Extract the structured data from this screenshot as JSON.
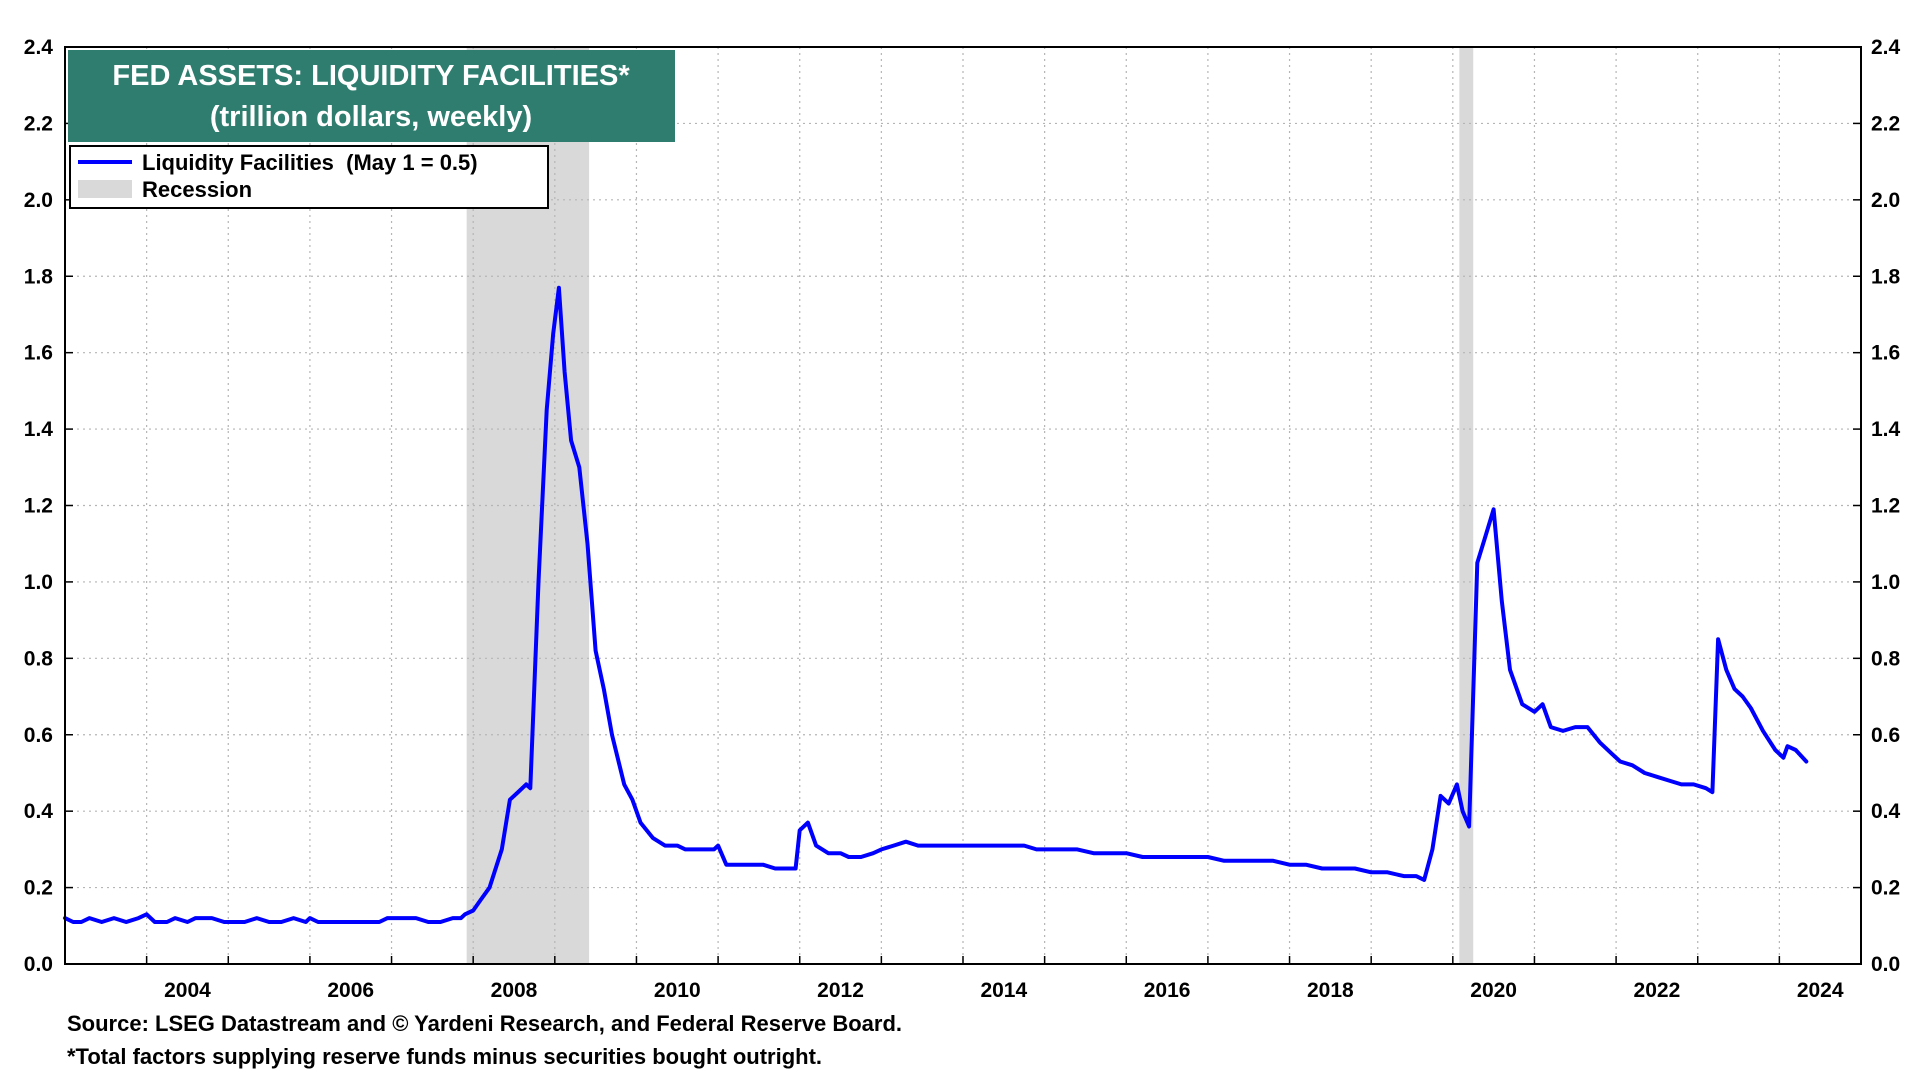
{
  "chart_data": {
    "type": "line",
    "title": "FED ASSETS: LIQUIDITY FACILITIES*",
    "subtitle": "(trillion dollars, weekly)",
    "legend": {
      "placement": "top-left",
      "entries": [
        {
          "label": "Liquidity Facilities  (May 1 = 0.5)",
          "kind": "line",
          "color": "#0000ff"
        },
        {
          "label": "Recession",
          "kind": "band",
          "color": "#d9d9d9"
        }
      ]
    },
    "x_ticks": [
      "2004",
      "2006",
      "2008",
      "2010",
      "2012",
      "2014",
      "2016",
      "2018",
      "2020",
      "2022",
      "2024"
    ],
    "y_ticks": [
      "0.0",
      "0.2",
      "0.4",
      "0.6",
      "0.8",
      "1.0",
      "1.2",
      "1.4",
      "1.6",
      "1.8",
      "2.0",
      "2.2",
      "2.4"
    ],
    "xlim": [
      2003.0,
      2025.0
    ],
    "ylim": [
      0,
      2.4
    ],
    "grid": true,
    "dual_y_axis": true,
    "recessions": [
      {
        "start": 2007.92,
        "end": 2009.42
      },
      {
        "start": 2020.08,
        "end": 2020.25
      }
    ],
    "series": [
      {
        "name": "Liquidity Facilities  (May 1 = 0.5)",
        "color": "#0000ff",
        "x": [
          2003.0,
          2003.1,
          2003.2,
          2003.3,
          2003.45,
          2003.6,
          2003.75,
          2003.9,
          2004.0,
          2004.1,
          2004.25,
          2004.35,
          2004.5,
          2004.6,
          2004.7,
          2004.8,
          2004.95,
          2005.05,
          2005.2,
          2005.35,
          2005.5,
          2005.65,
          2005.8,
          2005.95,
          2006.0,
          2006.1,
          2006.25,
          2006.4,
          2006.55,
          2006.7,
          2006.85,
          2006.95,
          2007.1,
          2007.2,
          2007.3,
          2007.45,
          2007.6,
          2007.75,
          2007.85,
          2007.9,
          2008.0,
          2008.1,
          2008.2,
          2008.35,
          2008.45,
          2008.55,
          2008.65,
          2008.7,
          2008.8,
          2008.9,
          2008.98,
          2009.05,
          2009.12,
          2009.2,
          2009.3,
          2009.4,
          2009.5,
          2009.6,
          2009.7,
          2009.85,
          2009.95,
          2010.05,
          2010.2,
          2010.35,
          2010.5,
          2010.6,
          2010.8,
          2010.95,
          2011.0,
          2011.1,
          2011.25,
          2011.4,
          2011.55,
          2011.7,
          2011.85,
          2011.95,
          2012.0,
          2012.1,
          2012.2,
          2012.35,
          2012.5,
          2012.6,
          2012.75,
          2012.9,
          2013.0,
          2013.15,
          2013.3,
          2013.45,
          2013.6,
          2013.75,
          2013.9,
          2014.0,
          2014.15,
          2014.3,
          2014.45,
          2014.6,
          2014.75,
          2014.9,
          2015.0,
          2015.2,
          2015.4,
          2015.6,
          2015.8,
          2016.0,
          2016.2,
          2016.4,
          2016.6,
          2016.8,
          2017.0,
          2017.2,
          2017.4,
          2017.6,
          2017.8,
          2018.0,
          2018.2,
          2018.4,
          2018.6,
          2018.8,
          2019.0,
          2019.2,
          2019.4,
          2019.55,
          2019.65,
          2019.75,
          2019.85,
          2019.95,
          2020.05,
          2020.12,
          2020.2,
          2020.3,
          2020.4,
          2020.5,
          2020.6,
          2020.7,
          2020.85,
          2021.0,
          2021.1,
          2021.2,
          2021.35,
          2021.5,
          2021.65,
          2021.8,
          2021.95,
          2022.05,
          2022.2,
          2022.35,
          2022.5,
          2022.65,
          2022.8,
          2022.95,
          2023.1,
          2023.18,
          2023.25,
          2023.35,
          2023.45,
          2023.55,
          2023.65,
          2023.8,
          2023.95,
          2024.05,
          2024.1,
          2024.2,
          2024.33
        ],
        "y": [
          0.12,
          0.11,
          0.11,
          0.12,
          0.11,
          0.12,
          0.11,
          0.12,
          0.13,
          0.11,
          0.11,
          0.12,
          0.11,
          0.12,
          0.12,
          0.12,
          0.11,
          0.11,
          0.11,
          0.12,
          0.11,
          0.11,
          0.12,
          0.11,
          0.12,
          0.11,
          0.11,
          0.11,
          0.11,
          0.11,
          0.11,
          0.12,
          0.12,
          0.12,
          0.12,
          0.11,
          0.11,
          0.12,
          0.12,
          0.13,
          0.14,
          0.17,
          0.2,
          0.3,
          0.43,
          0.45,
          0.47,
          0.46,
          1.0,
          1.45,
          1.65,
          1.77,
          1.55,
          1.37,
          1.3,
          1.1,
          0.82,
          0.72,
          0.6,
          0.47,
          0.43,
          0.37,
          0.33,
          0.31,
          0.31,
          0.3,
          0.3,
          0.3,
          0.31,
          0.26,
          0.26,
          0.26,
          0.26,
          0.25,
          0.25,
          0.25,
          0.35,
          0.37,
          0.31,
          0.29,
          0.29,
          0.28,
          0.28,
          0.29,
          0.3,
          0.31,
          0.32,
          0.31,
          0.31,
          0.31,
          0.31,
          0.31,
          0.31,
          0.31,
          0.31,
          0.31,
          0.31,
          0.3,
          0.3,
          0.3,
          0.3,
          0.29,
          0.29,
          0.29,
          0.28,
          0.28,
          0.28,
          0.28,
          0.28,
          0.27,
          0.27,
          0.27,
          0.27,
          0.26,
          0.26,
          0.25,
          0.25,
          0.25,
          0.24,
          0.24,
          0.23,
          0.23,
          0.22,
          0.3,
          0.44,
          0.42,
          0.47,
          0.4,
          0.36,
          1.05,
          1.12,
          1.19,
          0.95,
          0.77,
          0.68,
          0.66,
          0.68,
          0.62,
          0.61,
          0.62,
          0.62,
          0.58,
          0.55,
          0.53,
          0.52,
          0.5,
          0.49,
          0.48,
          0.47,
          0.47,
          0.46,
          0.45,
          0.85,
          0.77,
          0.72,
          0.7,
          0.67,
          0.61,
          0.56,
          0.54,
          0.57,
          0.56,
          0.53
        ]
      }
    ]
  },
  "footnotes": {
    "source": "Source: LSEG Datastream and © Yardeni Research, and Federal Reserve Board.",
    "note": "*Total factors supplying reserve funds minus securities bought outright."
  }
}
